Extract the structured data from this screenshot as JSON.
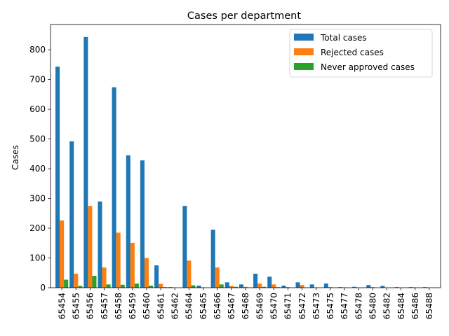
{
  "chart_data": {
    "type": "bar",
    "title": "Cases per department",
    "xlabel": "",
    "ylabel": "Cases",
    "ylim": [
      0,
      885
    ],
    "yticks": [
      0,
      100,
      200,
      300,
      400,
      500,
      600,
      700,
      800
    ],
    "grid": false,
    "legend_position": "top-right",
    "categories": [
      "65454",
      "65455",
      "65456",
      "65457",
      "65458",
      "65459",
      "65460",
      "65461",
      "65462",
      "65464",
      "65465",
      "65466",
      "65467",
      "65468",
      "65469",
      "65470",
      "65471",
      "65472",
      "65473",
      "65475",
      "65477",
      "65478",
      "65480",
      "65482",
      "65484",
      "65486",
      "65488"
    ],
    "series": [
      {
        "name": "Total cases",
        "color": "#1f77b4",
        "values": [
          743,
          492,
          843,
          290,
          674,
          445,
          428,
          75,
          2,
          275,
          7,
          195,
          18,
          11,
          47,
          37,
          7,
          18,
          11,
          14,
          2,
          3,
          9,
          6,
          2,
          2,
          2
        ]
      },
      {
        "name": "Rejected cases",
        "color": "#ff7f0e",
        "values": [
          226,
          47,
          275,
          68,
          185,
          151,
          100,
          13,
          0,
          91,
          1,
          68,
          6,
          3,
          14,
          11,
          2,
          9,
          1,
          2,
          1,
          0,
          2,
          0,
          0,
          1,
          0
        ]
      },
      {
        "name": "Never approved cases",
        "color": "#2ca02c",
        "values": [
          27,
          6,
          40,
          11,
          10,
          14,
          7,
          2,
          0,
          8,
          0,
          11,
          3,
          1,
          3,
          2,
          0,
          1,
          0,
          0,
          0,
          0,
          0,
          0,
          0,
          0,
          0
        ]
      }
    ]
  }
}
